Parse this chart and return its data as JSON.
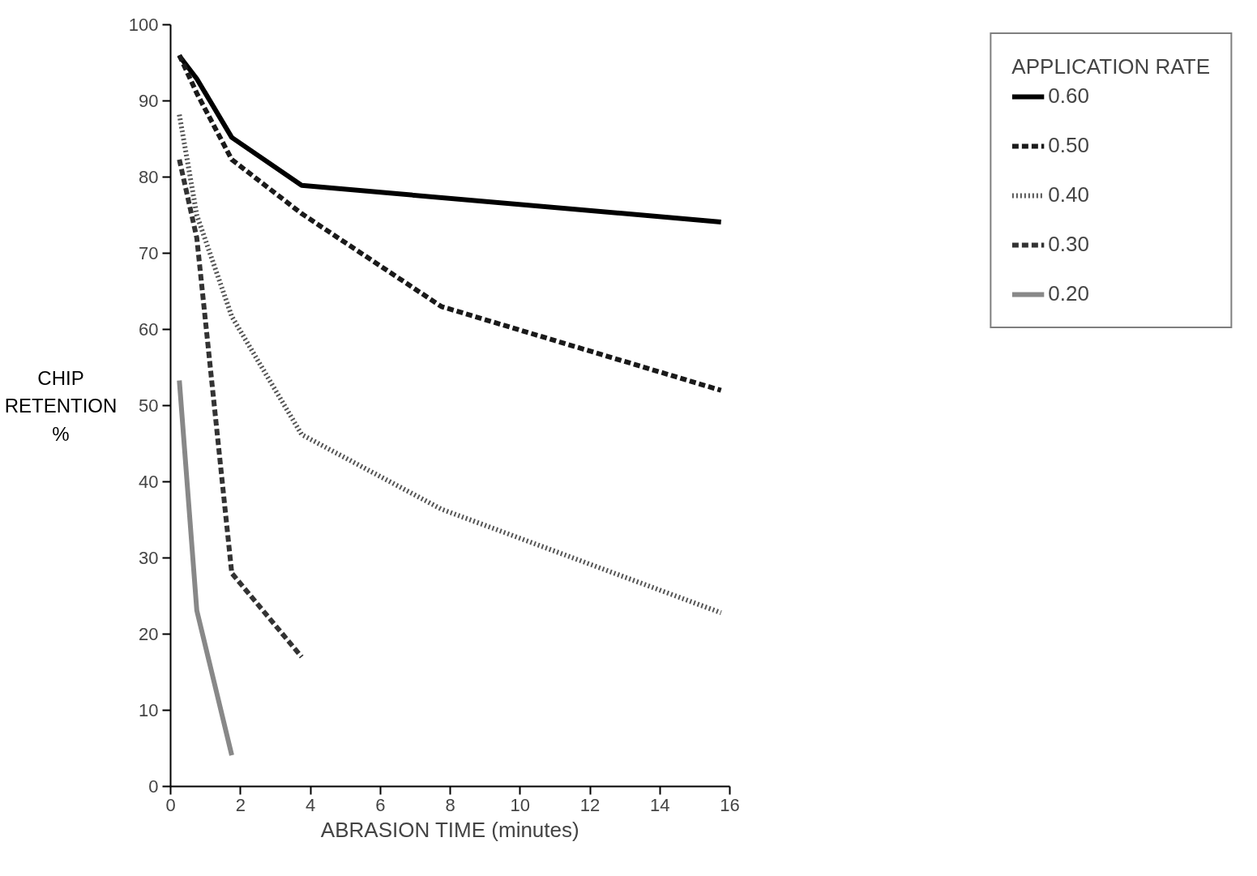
{
  "chart_data": {
    "type": "line",
    "xlabel": "ABRASION TIME (minutes)",
    "ylabel": "CHIP RETENTION %",
    "legend_title": "APPLICATION RATE",
    "xlim": [
      0,
      16
    ],
    "ylim": [
      0,
      100
    ],
    "xticks": [
      0,
      2,
      4,
      6,
      8,
      10,
      12,
      14,
      16
    ],
    "yticks": [
      0,
      10,
      20,
      30,
      40,
      50,
      60,
      70,
      80,
      90,
      100
    ],
    "grid": false,
    "legend": "right",
    "series": [
      {
        "name": "0.60",
        "color": "#000000",
        "line_style": "solid",
        "x": [
          0.25,
          0.75,
          1.75,
          3.75,
          15.75
        ],
        "values": [
          95.9,
          92.9,
          85.2,
          78.9,
          74.1
        ]
      },
      {
        "name": "0.50",
        "color": "#1a1a1a",
        "line_style": "dashed",
        "x": [
          0.25,
          0.75,
          1.75,
          3.75,
          7.75,
          15.75
        ],
        "values": [
          96,
          91,
          82.3,
          75.2,
          63,
          52
        ]
      },
      {
        "name": "0.40",
        "color": "#555555",
        "line_style": "dotted",
        "x": [
          0.25,
          0.75,
          1.75,
          3.75,
          7.75,
          15.75
        ],
        "values": [
          88.2,
          75,
          61.7,
          46.2,
          36.4,
          22.8
        ]
      },
      {
        "name": "0.30",
        "color": "#333333",
        "line_style": "dashed",
        "x": [
          0.25,
          0.75,
          1.75,
          3.75
        ],
        "values": [
          82.3,
          72,
          28,
          17
        ]
      },
      {
        "name": "0.20",
        "color": "#888888",
        "line_style": "solid",
        "x": [
          0.25,
          0.75,
          1.75
        ],
        "values": [
          53.3,
          23.1,
          4.1
        ]
      }
    ]
  }
}
